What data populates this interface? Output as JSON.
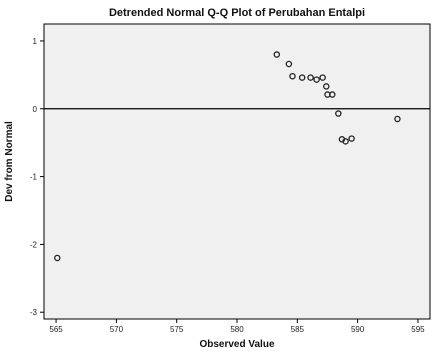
{
  "chart_data": {
    "type": "scatter",
    "title": "Detrended Normal Q-Q Plot of Perubahan Entalpi",
    "xlabel": "Observed Value",
    "ylabel": "Dev from Normal",
    "xlim": [
      564,
      596
    ],
    "ylim": [
      -3.1,
      1.25
    ],
    "xticks": [
      565,
      570,
      575,
      580,
      585,
      590,
      595
    ],
    "yticks": [
      1,
      0,
      -1,
      -2,
      -3
    ],
    "xtick_labels": [
      "565",
      "570",
      "575",
      "580",
      "585",
      "590",
      "595"
    ],
    "ytick_labels": [
      "1",
      "0",
      "-1",
      "-2",
      "-3"
    ],
    "reference_line": 0,
    "grid": false,
    "colors": {
      "plot_background": "#f0f0f0",
      "frame": "#000000",
      "marker": "#222222",
      "reference_line": "#000000"
    },
    "points": [
      {
        "x": 565.1,
        "y": -2.2
      },
      {
        "x": 583.3,
        "y": 0.8
      },
      {
        "x": 584.3,
        "y": 0.66
      },
      {
        "x": 584.6,
        "y": 0.48
      },
      {
        "x": 585.4,
        "y": 0.46
      },
      {
        "x": 586.1,
        "y": 0.46
      },
      {
        "x": 586.6,
        "y": 0.43
      },
      {
        "x": 587.1,
        "y": 0.46
      },
      {
        "x": 587.4,
        "y": 0.33
      },
      {
        "x": 587.5,
        "y": 0.21
      },
      {
        "x": 587.9,
        "y": 0.21
      },
      {
        "x": 588.4,
        "y": -0.07
      },
      {
        "x": 588.7,
        "y": -0.45
      },
      {
        "x": 589.0,
        "y": -0.48
      },
      {
        "x": 589.5,
        "y": -0.44
      },
      {
        "x": 593.3,
        "y": -0.15
      }
    ]
  }
}
